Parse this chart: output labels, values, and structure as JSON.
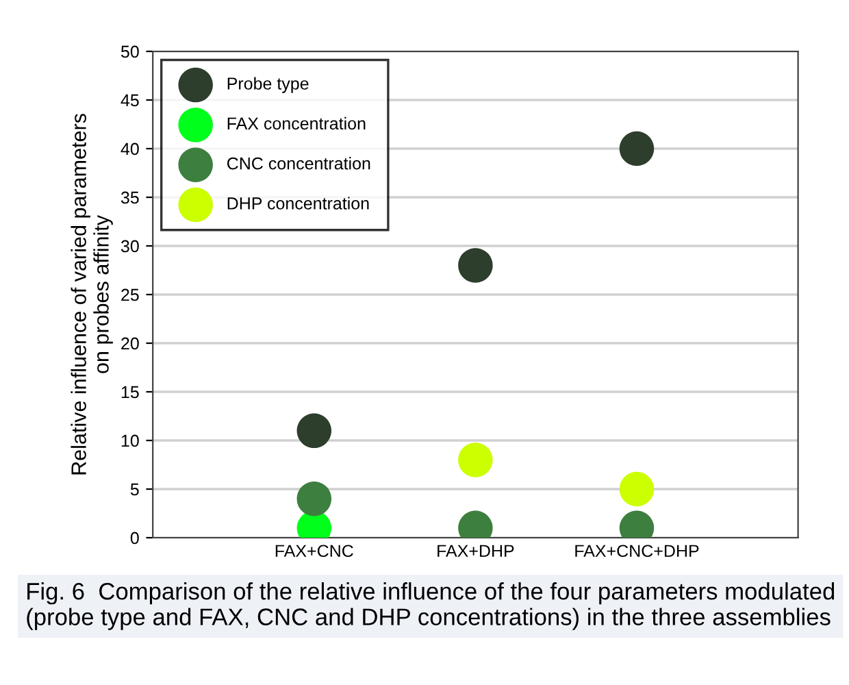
{
  "chart_data": {
    "type": "scatter",
    "ylabel": "Relative influence of varied parameters\non probes affinity",
    "categories": [
      "FAX+CNC",
      "FAX+DHP",
      "FAX+CNC+DHP"
    ],
    "series": [
      {
        "name": "Probe type",
        "color": "#2d3e2c",
        "values": [
          11,
          28,
          40
        ]
      },
      {
        "name": "FAX concentration",
        "color": "#00ff1a",
        "values": [
          1,
          null,
          null
        ]
      },
      {
        "name": "CNC concentration",
        "color": "#3d7f3f",
        "values": [
          4,
          1,
          1
        ]
      },
      {
        "name": "DHP concentration",
        "color": "#ccff00",
        "values": [
          null,
          8,
          5
        ]
      }
    ],
    "ylim": [
      0,
      50
    ],
    "yticks": [
      0,
      5,
      10,
      15,
      20,
      25,
      30,
      35,
      40,
      45,
      50
    ],
    "grid": "y",
    "legend": "top left",
    "marker": "circle",
    "annotations": [
      "Fig. 6  Comparison of the relative influence of the four parameters modulated (probe type and FAX, CNC and DHP concentrations) in the three assemblies"
    ]
  }
}
